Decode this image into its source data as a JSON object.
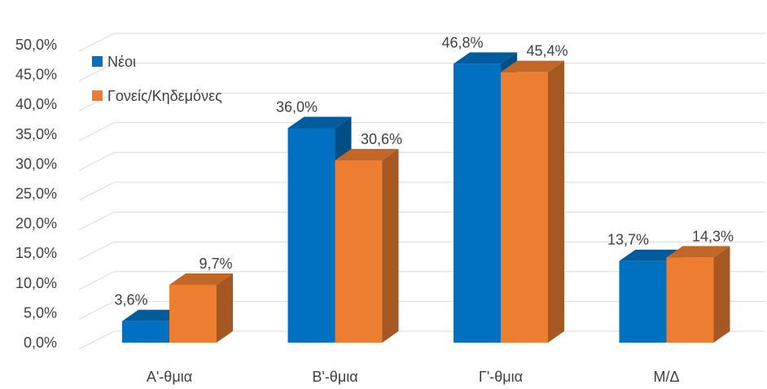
{
  "chart_data": {
    "type": "bar",
    "categories": [
      "Α'-θμια",
      "Β'-θμια",
      "Γ'-θμια",
      "Μ/Δ"
    ],
    "series": [
      {
        "name": "Νέοι",
        "values": [
          3.6,
          36.0,
          46.8,
          13.7
        ],
        "labels": [
          "3,6%",
          "36,0%",
          "46,8%",
          "13,7%"
        ],
        "color": "#0070C0"
      },
      {
        "name": "Γονείς/Κηδεμόνες",
        "values": [
          9.7,
          30.6,
          45.4,
          14.3
        ],
        "labels": [
          "9,7%",
          "30,6%",
          "45,4%",
          "14,3%"
        ],
        "color": "#ED7D31"
      }
    ],
    "y_ticks": [
      "0,0%",
      "5,0%",
      "10,0%",
      "15,0%",
      "20,0%",
      "25,0%",
      "30,0%",
      "35,0%",
      "40,0%",
      "45,0%",
      "50,0%"
    ],
    "ylim": [
      0,
      50
    ],
    "grid": true,
    "legend_position": "top-left",
    "style": "3d-clustered-column"
  }
}
